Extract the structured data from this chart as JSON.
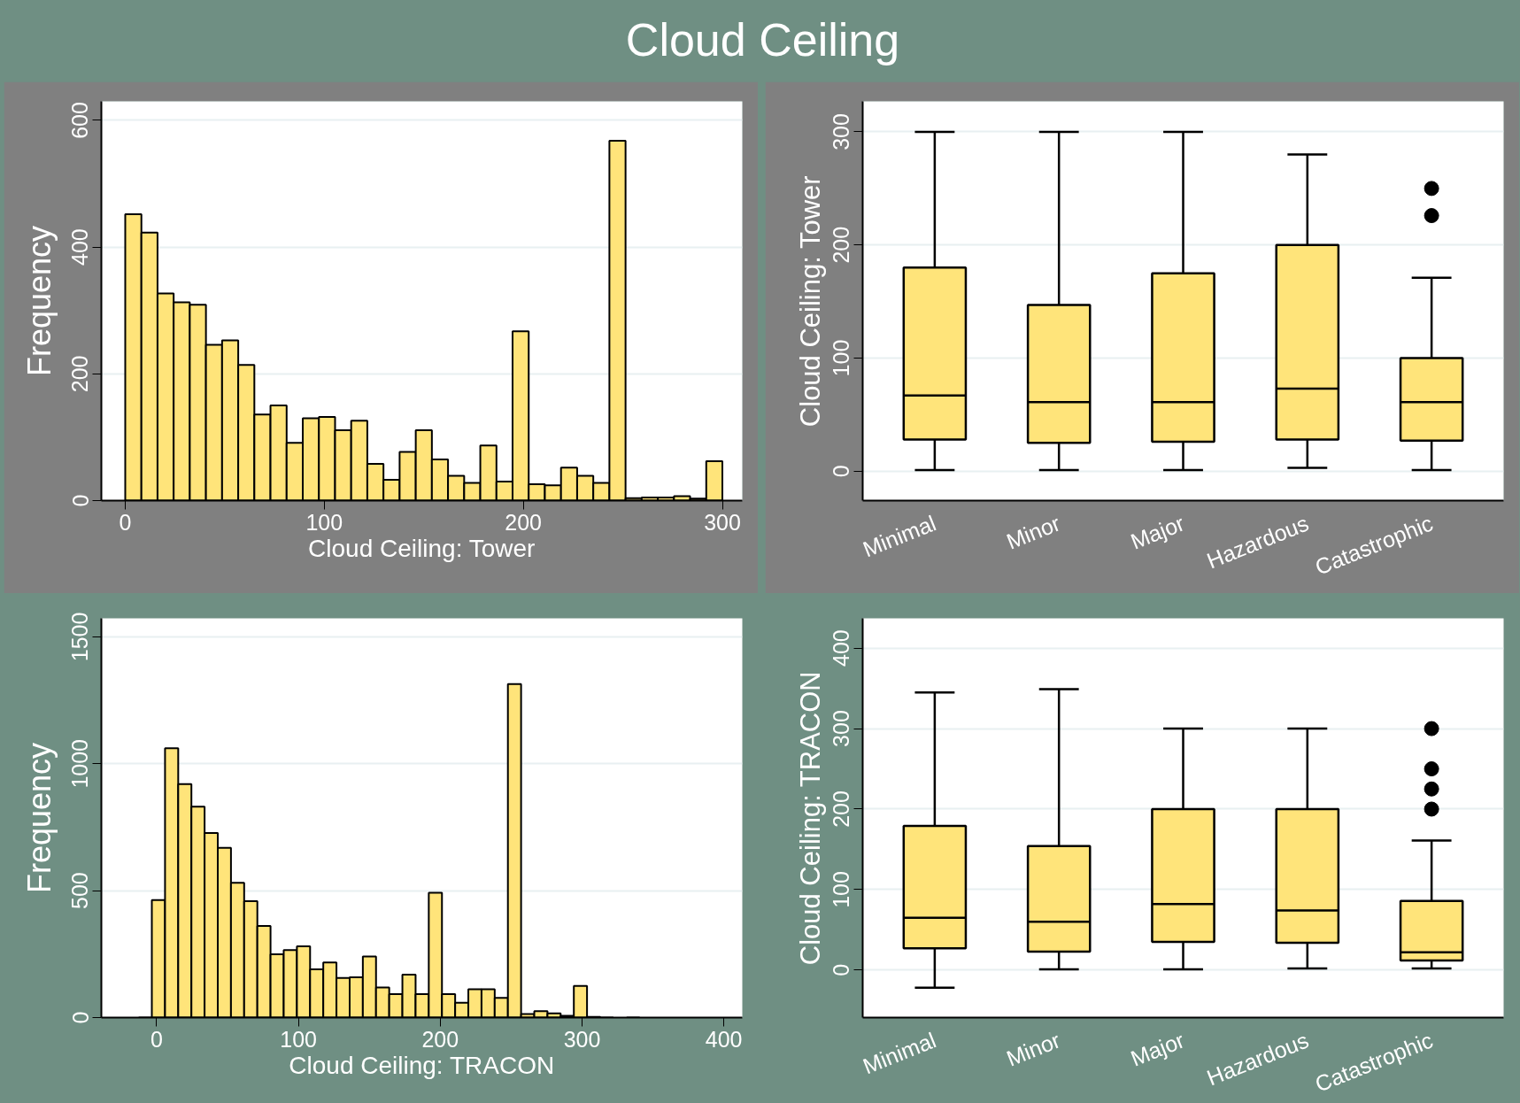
{
  "chart_data": [
    {
      "type": "histogram",
      "title": "Cloud Ceiling",
      "xlabel": "Cloud Ceiling: Tower",
      "ylabel": "Frequency",
      "color": "#ffe47a",
      "bins": [
        0,
        8.11,
        16.22,
        24.32,
        32.43,
        40.54,
        48.65,
        56.76,
        64.86,
        72.97,
        81.08,
        89.19,
        97.3,
        105.41,
        113.51,
        121.62,
        129.73,
        137.84,
        145.95,
        154.05,
        162.16,
        170.27,
        178.38,
        186.49,
        194.59,
        202.7,
        210.81,
        218.92,
        227.03,
        235.14,
        243.24,
        251.35,
        259.46,
        267.57,
        275.68,
        283.78,
        291.89,
        300
      ],
      "values": [
        452,
        423,
        327,
        313,
        309,
        246,
        253,
        214,
        136,
        150,
        91,
        130,
        132,
        111,
        126,
        58,
        33,
        77,
        111,
        65,
        39,
        28,
        87,
        30,
        267,
        26,
        24,
        52,
        39,
        28,
        568,
        4,
        5,
        5,
        7,
        3,
        62
      ],
      "xlim": [
        -12,
        310
      ],
      "ylim": [
        0,
        630
      ],
      "xticks": [
        0,
        100,
        200,
        300
      ],
      "yticks": [
        0,
        200,
        400,
        600
      ],
      "grid": "y"
    },
    {
      "type": "box",
      "ylabel": "Cloud Ceiling: Tower",
      "color": "#ffe47a",
      "categories": [
        "Minimal",
        "Minor",
        "Major",
        "Hazardous",
        "Catastrophic"
      ],
      "boxes": [
        {
          "low": 1,
          "q1": 28,
          "median": 67,
          "q3": 180,
          "high": 300
        },
        {
          "low": 1,
          "q1": 25,
          "median": 61,
          "q3": 147,
          "high": 300
        },
        {
          "low": 1,
          "q1": 26,
          "median": 61,
          "q3": 175,
          "high": 300
        },
        {
          "low": 3,
          "q1": 28,
          "median": 73,
          "q3": 200,
          "high": 280
        },
        {
          "low": 1,
          "q1": 27,
          "median": 61,
          "q3": 100,
          "high": 171,
          "outliers": [
            250,
            226
          ]
        }
      ],
      "ylim": [
        -26,
        327
      ],
      "yticks": [
        0,
        100,
        200,
        300
      ],
      "grid": "y"
    },
    {
      "type": "histogram",
      "xlabel": "Cloud Ceiling: TRACON",
      "ylabel": "Frequency",
      "color": "#ffe47a",
      "bins": [
        -22,
        -12.7,
        -3.4,
        5.9,
        15.2,
        24.5,
        33.8,
        43.1,
        52.4,
        61.7,
        71,
        80.3,
        89.6,
        98.9,
        108.2,
        117.5,
        126.8,
        136.1,
        145.4,
        154.7,
        164,
        173.3,
        182.6,
        191.9,
        201.2,
        210.5,
        219.8,
        229.1,
        238.4,
        247.7,
        257,
        266.3,
        275.6,
        284.9,
        294.2,
        303.5,
        312.8,
        322.1,
        331.4,
        340.7,
        350
      ],
      "values": [
        null,
        0,
        463,
        1061,
        920,
        831,
        727,
        669,
        531,
        459,
        361,
        249,
        266,
        281,
        190,
        217,
        156,
        159,
        241,
        119,
        92,
        169,
        92,
        492,
        92,
        58,
        112,
        112,
        78,
        1314,
        14,
        25,
        17,
        7,
        125,
        3,
        0,
        null,
        0,
        null
      ],
      "xlim": [
        -39,
        413
      ],
      "ylim": [
        0,
        1573
      ],
      "xticks": [
        0,
        100,
        200,
        300,
        400
      ],
      "yticks": [
        0,
        500,
        1000,
        1500
      ],
      "grid": "y"
    },
    {
      "type": "box",
      "ylabel": "Cloud Ceiling: TRACON",
      "color": "#ffe47a",
      "categories": [
        "Minimal",
        "Minor",
        "Major",
        "Hazardous",
        "Catastrophic"
      ],
      "boxes": [
        {
          "low": -22,
          "q1": 27,
          "median": 65,
          "q3": 179,
          "high": 345
        },
        {
          "low": 1,
          "q1": 23,
          "median": 60,
          "q3": 154,
          "high": 349
        },
        {
          "low": 1,
          "q1": 35,
          "median": 82,
          "q3": 200,
          "high": 300
        },
        {
          "low": 2,
          "q1": 34,
          "median": 74,
          "q3": 200,
          "high": 300
        },
        {
          "low": 2,
          "q1": 12,
          "median": 22,
          "q3": 86,
          "high": 161,
          "outliers": [
            300,
            250,
            225,
            200
          ]
        }
      ],
      "ylim": [
        -59,
        437
      ],
      "yticks": [
        0,
        100,
        200,
        300,
        400
      ],
      "grid": "y"
    }
  ]
}
